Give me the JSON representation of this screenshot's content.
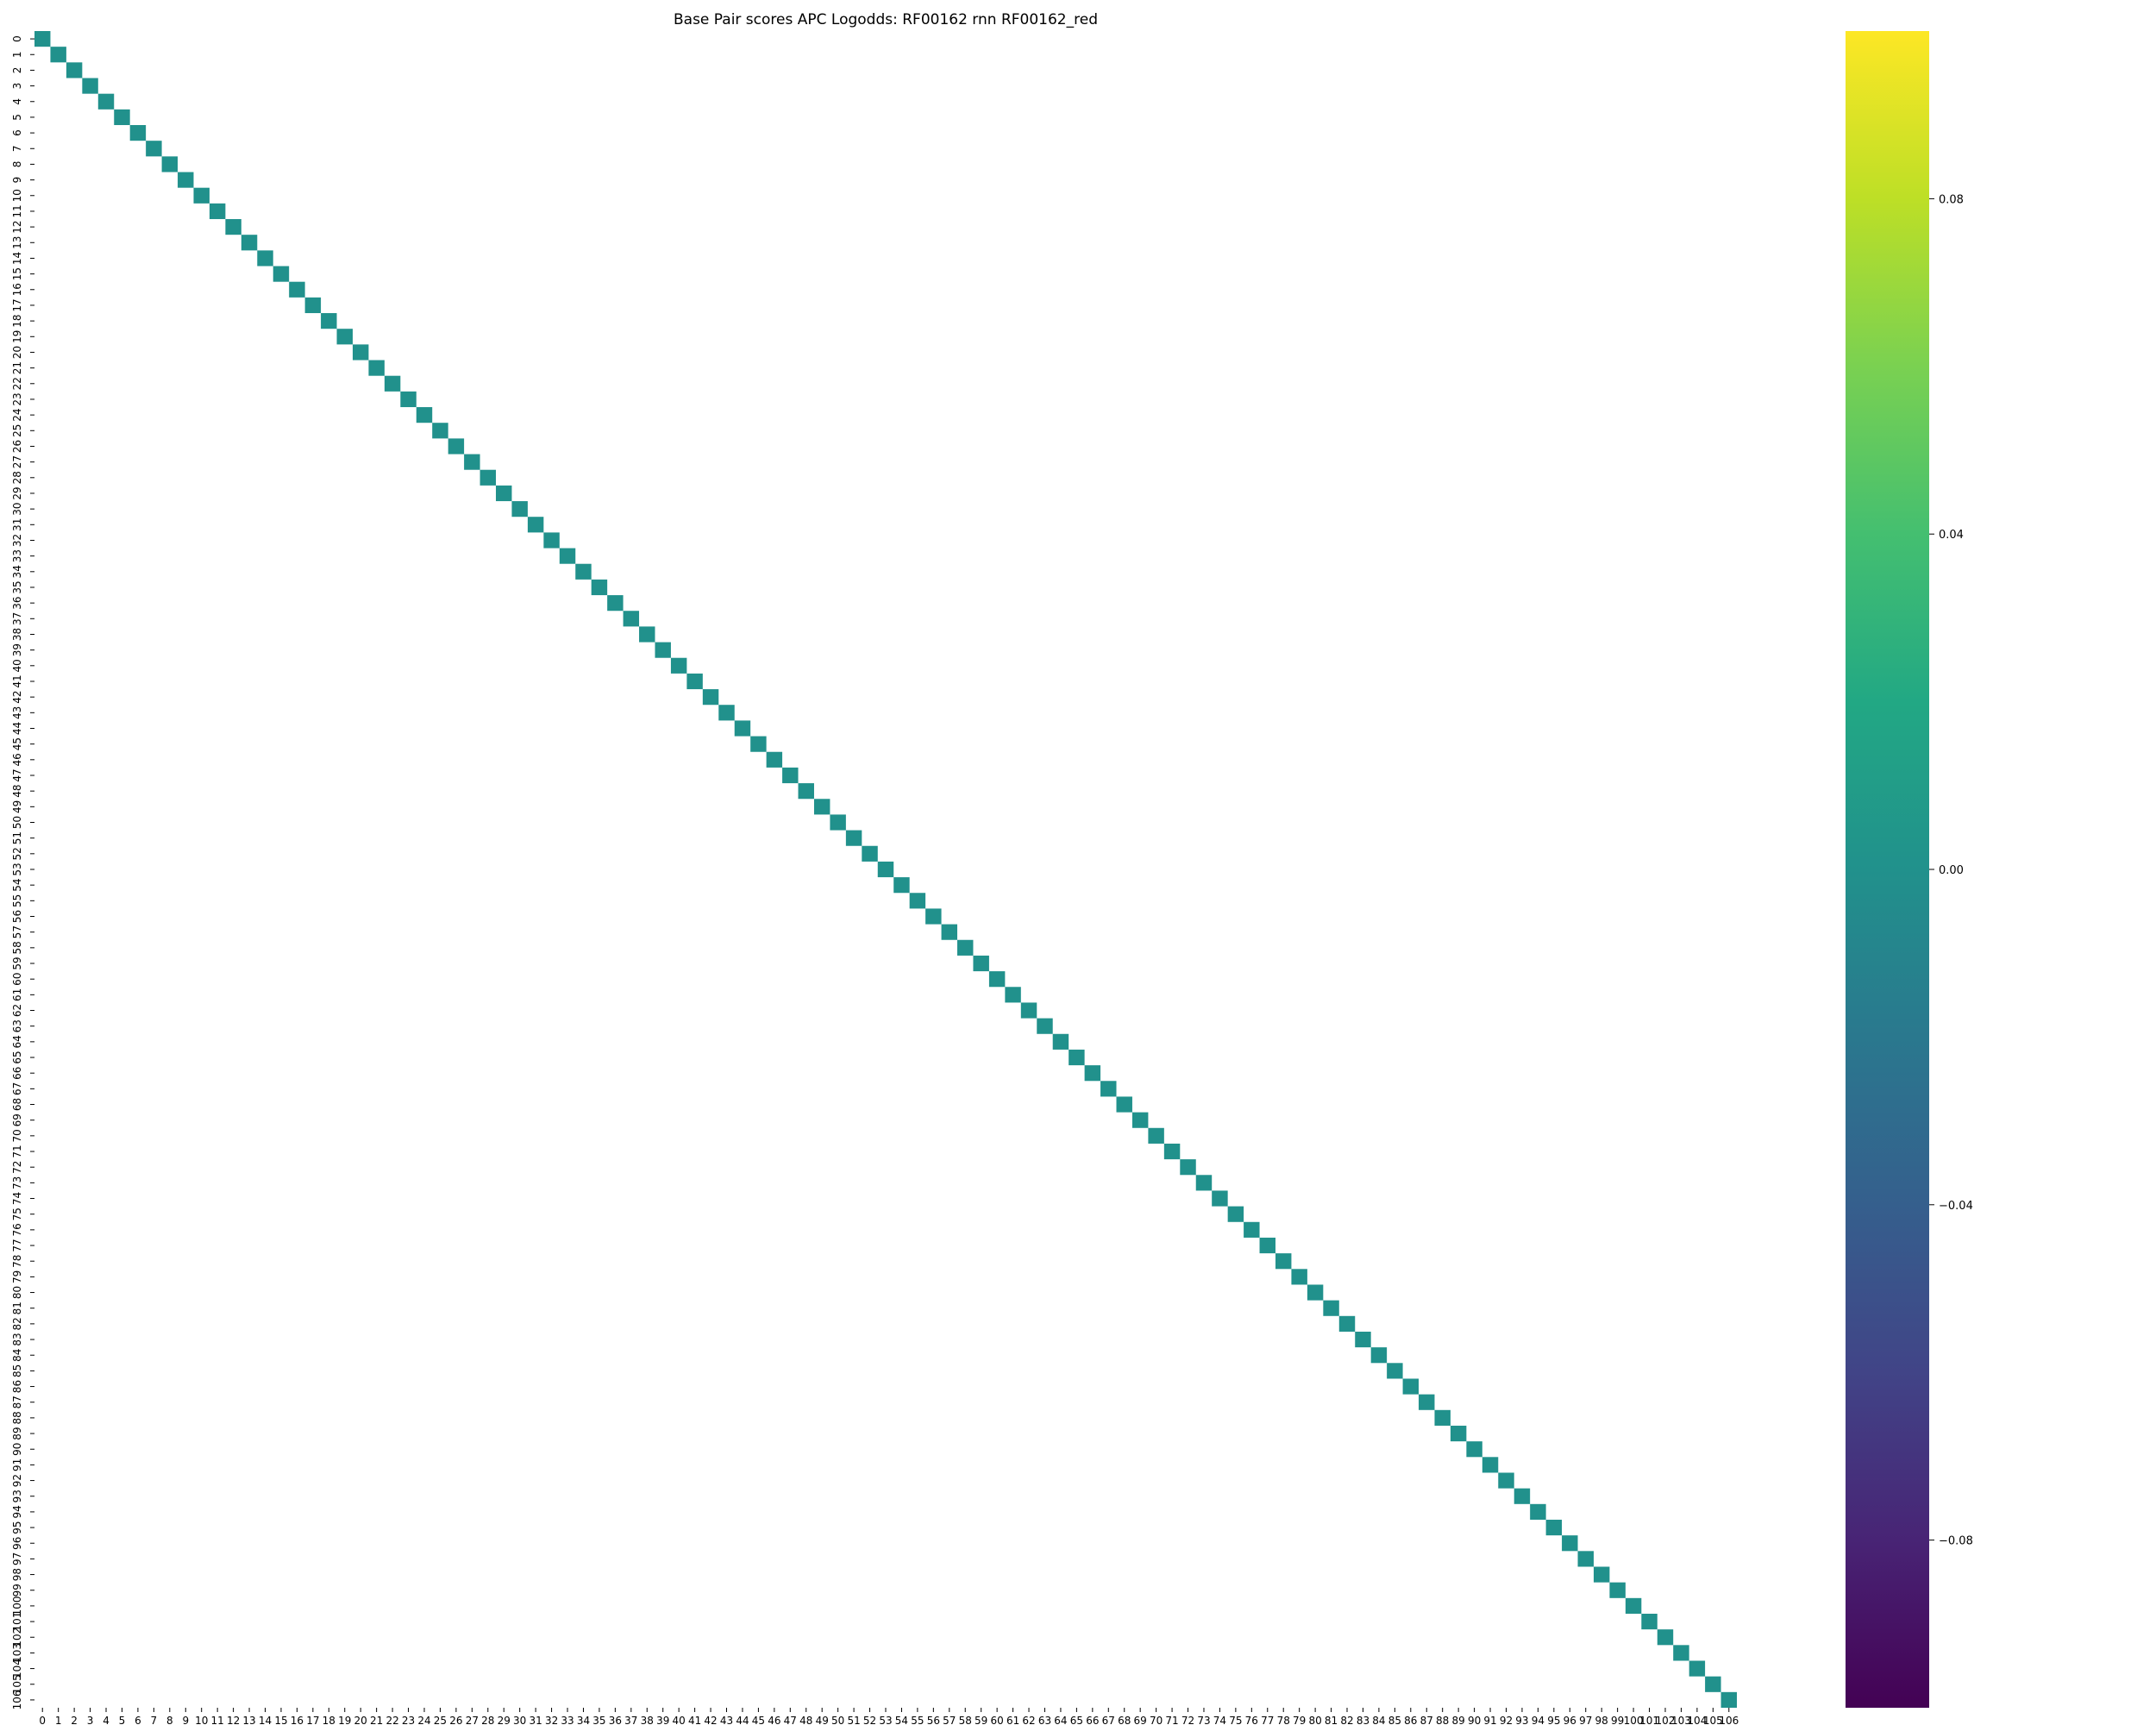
{
  "chart_data": {
    "type": "heatmap",
    "title": "Base Pair scores APC Logodds: RF00162 rnn RF00162_red",
    "xlabel": "",
    "ylabel": "",
    "n": 107,
    "row_labels": [
      "0",
      "1",
      "2",
      "3",
      "4",
      "5",
      "6",
      "7",
      "8",
      "9",
      "10",
      "11",
      "12",
      "13",
      "14",
      "15",
      "16",
      "17",
      "18",
      "19",
      "20",
      "21",
      "22",
      "23",
      "24",
      "25",
      "26",
      "27",
      "28",
      "29",
      "30",
      "31",
      "32",
      "33",
      "34",
      "35",
      "36",
      "37",
      "38",
      "39",
      "40",
      "41",
      "42",
      "43",
      "44",
      "45",
      "46",
      "47",
      "48",
      "49",
      "50",
      "51",
      "52",
      "53",
      "54",
      "55",
      "56",
      "57",
      "58",
      "59",
      "60",
      "61",
      "62",
      "63",
      "64",
      "65",
      "66",
      "67",
      "68",
      "69",
      "70",
      "71",
      "72",
      "73",
      "74",
      "75",
      "76",
      "77",
      "78",
      "79",
      "80",
      "81",
      "82",
      "83",
      "84",
      "85",
      "86",
      "87",
      "88",
      "89",
      "90",
      "91",
      "92",
      "93",
      "94",
      "95",
      "96",
      "97",
      "98",
      "99",
      "100",
      "101",
      "102",
      "103",
      "104",
      "105",
      "106"
    ],
    "col_labels": [
      "0",
      "1",
      "2",
      "3",
      "4",
      "5",
      "6",
      "7",
      "8",
      "9",
      "10",
      "11",
      "12",
      "13",
      "14",
      "15",
      "16",
      "17",
      "18",
      "19",
      "20",
      "21",
      "22",
      "23",
      "24",
      "25",
      "26",
      "27",
      "28",
      "29",
      "30",
      "31",
      "32",
      "33",
      "34",
      "35",
      "36",
      "37",
      "38",
      "39",
      "40",
      "41",
      "42",
      "43",
      "44",
      "45",
      "46",
      "47",
      "48",
      "49",
      "50",
      "51",
      "52",
      "53",
      "54",
      "55",
      "56",
      "57",
      "58",
      "59",
      "60",
      "61",
      "62",
      "63",
      "64",
      "65",
      "66",
      "67",
      "68",
      "69",
      "70",
      "71",
      "72",
      "73",
      "74",
      "75",
      "76",
      "77",
      "78",
      "79",
      "80",
      "81",
      "82",
      "83",
      "84",
      "85",
      "86",
      "87",
      "88",
      "89",
      "90",
      "91",
      "92",
      "93",
      "94",
      "95",
      "96",
      "97",
      "98",
      "99",
      "100",
      "101",
      "102",
      "103",
      "104",
      "105",
      "106"
    ],
    "cells": "diagonal (i, i) = 0.0 for i = 0..106; all other cells masked (blank)",
    "diagonal_value": 0.0,
    "colormap": "viridis",
    "colorbar": {
      "vmin": -0.1,
      "vmax": 0.1,
      "ticks": [
        0.08,
        0.04,
        0.0,
        -0.04,
        -0.08
      ],
      "tick_labels": [
        "0.08",
        "0.04",
        "0.00",
        "−0.04",
        "−0.08"
      ]
    },
    "grid": false,
    "legend": "colorbar-right"
  },
  "colors": {
    "diagonal_cell": "#21918c",
    "viridis_top": "#fde725",
    "viridis_bottom": "#440154"
  }
}
